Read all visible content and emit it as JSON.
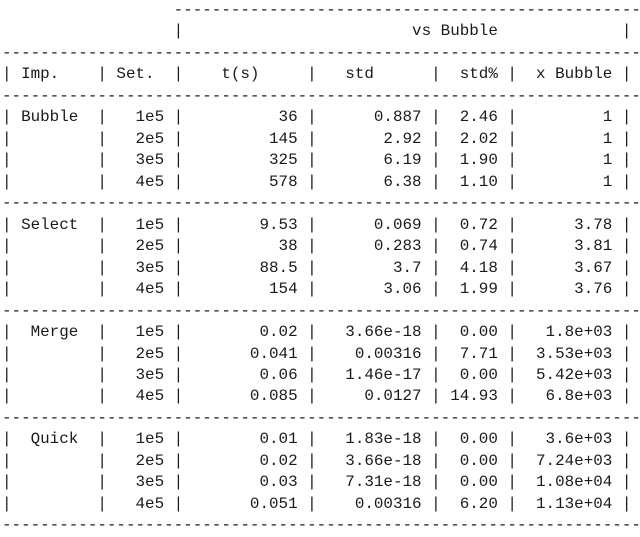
{
  "glyphs": {
    "pipe": "|",
    "dash": "-"
  },
  "table": {
    "span_header": "vs Bubble",
    "columns": [
      {
        "key": "imp",
        "label": "Imp."
      },
      {
        "key": "set",
        "label": "Set."
      },
      {
        "key": "t",
        "label": "t(s)"
      },
      {
        "key": "std",
        "label": "std"
      },
      {
        "key": "std_pct",
        "label": "std%"
      },
      {
        "key": "x_bubble",
        "label": "x Bubble"
      }
    ],
    "groups": [
      {
        "label": "Bubble",
        "rows": [
          {
            "set": "1e5",
            "t": "36",
            "std": "0.887",
            "std_pct": "2.46",
            "x_bubble": "1"
          },
          {
            "set": "2e5",
            "t": "145",
            "std": "2.92",
            "std_pct": "2.02",
            "x_bubble": "1"
          },
          {
            "set": "3e5",
            "t": "325",
            "std": "6.19",
            "std_pct": "1.90",
            "x_bubble": "1"
          },
          {
            "set": "4e5",
            "t": "578",
            "std": "6.38",
            "std_pct": "1.10",
            "x_bubble": "1"
          }
        ]
      },
      {
        "label": "Select",
        "rows": [
          {
            "set": "1e5",
            "t": "9.53",
            "std": "0.069",
            "std_pct": "0.72",
            "x_bubble": "3.78"
          },
          {
            "set": "2e5",
            "t": "38",
            "std": "0.283",
            "std_pct": "0.74",
            "x_bubble": "3.81"
          },
          {
            "set": "3e5",
            "t": "88.5",
            "std": "3.7",
            "std_pct": "4.18",
            "x_bubble": "3.67"
          },
          {
            "set": "4e5",
            "t": "154",
            "std": "3.06",
            "std_pct": "1.99",
            "x_bubble": "3.76"
          }
        ]
      },
      {
        "label": "Merge",
        "rows": [
          {
            "set": "1e5",
            "t": "0.02",
            "std": "3.66e-18",
            "std_pct": "0.00",
            "x_bubble": "1.8e+03"
          },
          {
            "set": "2e5",
            "t": "0.041",
            "std": "0.00316",
            "std_pct": "7.71",
            "x_bubble": "3.53e+03"
          },
          {
            "set": "3e5",
            "t": "0.06",
            "std": "1.46e-17",
            "std_pct": "0.00",
            "x_bubble": "5.42e+03"
          },
          {
            "set": "4e5",
            "t": "0.085",
            "std": "0.0127",
            "std_pct": "14.93",
            "x_bubble": "6.8e+03"
          }
        ]
      },
      {
        "label": "Quick",
        "rows": [
          {
            "set": "1e5",
            "t": "0.01",
            "std": "1.83e-18",
            "std_pct": "0.00",
            "x_bubble": "3.6e+03"
          },
          {
            "set": "2e5",
            "t": "0.02",
            "std": "3.66e-18",
            "std_pct": "0.00",
            "x_bubble": "7.24e+03"
          },
          {
            "set": "3e5",
            "t": "0.03",
            "std": "7.31e-18",
            "std_pct": "0.00",
            "x_bubble": "1.08e+04"
          },
          {
            "set": "4e5",
            "t": "0.051",
            "std": "0.00316",
            "std_pct": "6.20",
            "x_bubble": "1.13e+04"
          }
        ]
      }
    ]
  }
}
